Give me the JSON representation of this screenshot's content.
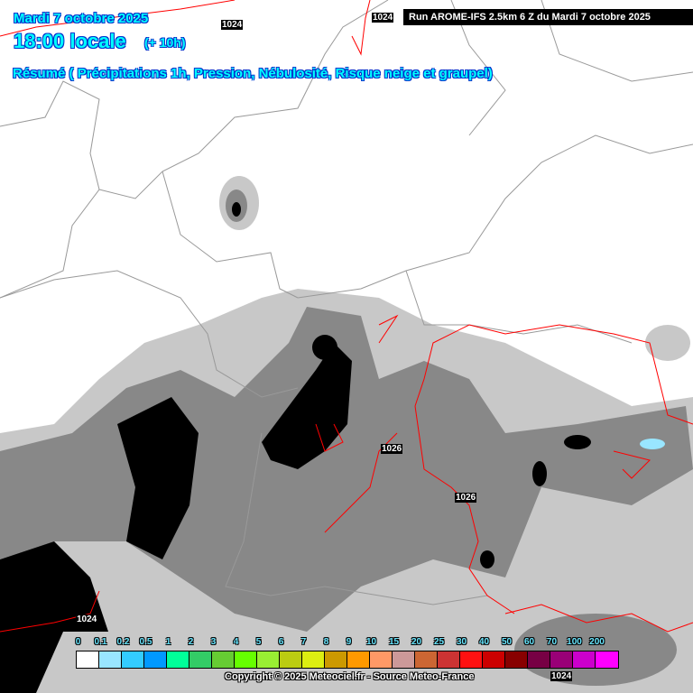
{
  "header": {
    "date": "Mardi 7 octobre 2025",
    "time": "18:00 locale",
    "lead": "(+ 10h)",
    "subtitle": "Résumé ( Précipitations 1h, Pression, Nébulosité, Risque neige et graupel)",
    "run": "Run AROME-IFS 2.5km 6 Z du Mardi 7 octobre 2025"
  },
  "pressure_labels": [
    "1024",
    "1024",
    "1026",
    "1026",
    "1024",
    "1024"
  ],
  "legend": {
    "labels": [
      "0",
      "0.1",
      "0.2",
      "0.5",
      "1",
      "2",
      "3",
      "4",
      "5",
      "6",
      "7",
      "8",
      "9",
      "10",
      "15",
      "20",
      "25",
      "30",
      "40",
      "50",
      "60",
      "70",
      "100",
      "200"
    ],
    "colors": [
      "#ffffff",
      "#99e6ff",
      "#33ccff",
      "#0099ff",
      "#00ff99",
      "#33cc66",
      "#66cc33",
      "#66ff00",
      "#99ee33",
      "#bbcc11",
      "#ddee11",
      "#cc9900",
      "#ff9900",
      "#ff9966",
      "#cc9999",
      "#cc6633",
      "#cc3333",
      "#ff1111",
      "#cc0000",
      "#880000",
      "#770044",
      "#990077",
      "#cc00cc",
      "#ff00ff"
    ]
  },
  "copyright": "Copyright © 2025 Meteociel.fr - Source Meteo-France",
  "colors": {
    "title": "#00ffff",
    "isobar": "#ff0000",
    "border": "#999999",
    "cloud_dark": "#000000",
    "cloud_mid": "#777777",
    "cloud_light": "#bbbbbb"
  }
}
